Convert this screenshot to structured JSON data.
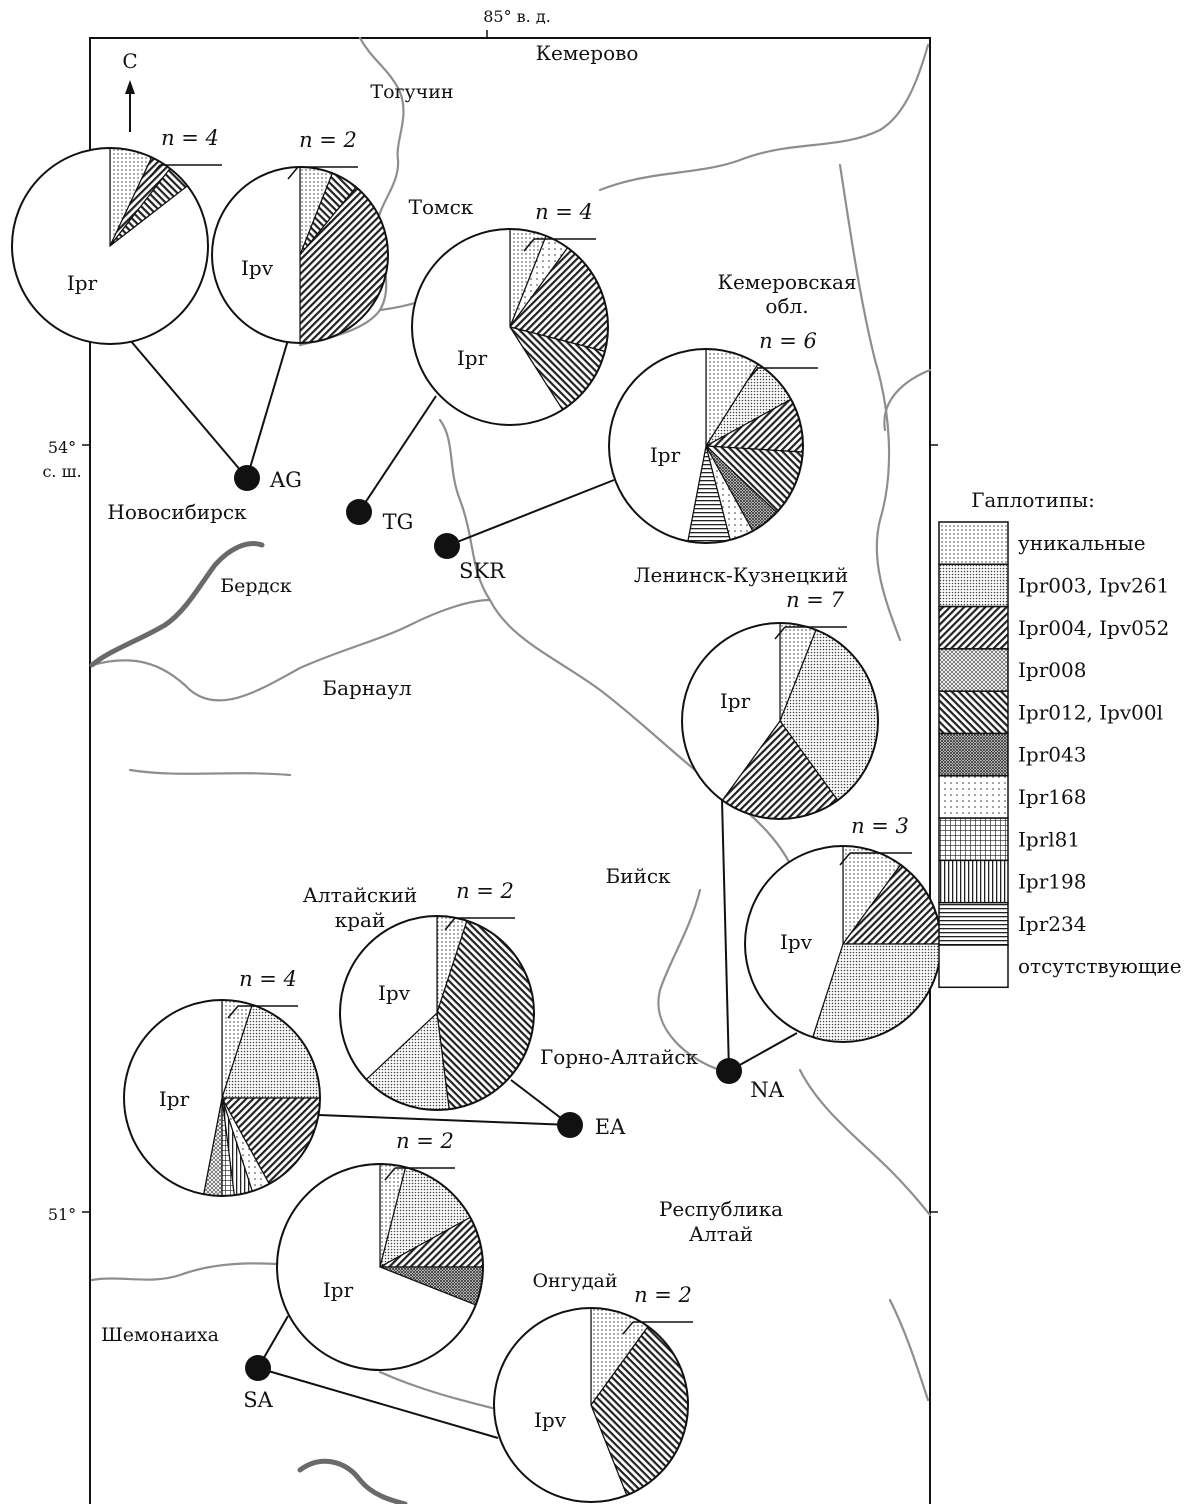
{
  "axes": {
    "longitude_label": "85° в. д.",
    "lat54_value": "54°",
    "lat54_suffix": "с. ш.",
    "lat51_value": "51°"
  },
  "north_arrow": "С",
  "place_labels": {
    "kemerovo": "Кемерово",
    "toguchin": "Тогучин",
    "tomsk": "Томск",
    "kemerovo_obl_1": "Кемеровская",
    "kemerovo_obl_2": "обл.",
    "novosibirsk": "Новосибирск",
    "berdsk": "Бердск",
    "leninsk": "Ленинск-Кузнецкий",
    "barnaul": "Барнаул",
    "biysk": "Бийск",
    "altai_krai_1": "Алтайский",
    "altai_krai_2": "край",
    "gorno_altaysk": "Горно-Алтайск",
    "rep_altai_1": "Республика",
    "rep_altai_2": "Алтай",
    "shemonaikha": "Шемонаиха",
    "ongudai": "Онгудай"
  },
  "sites": [
    {
      "code": "AG"
    },
    {
      "code": "TG"
    },
    {
      "code": "SKR"
    },
    {
      "code": "NA"
    },
    {
      "code": "EA"
    },
    {
      "code": "SA"
    }
  ],
  "legend": {
    "title": "Гаплотипы:",
    "items": [
      {
        "label": "уникальные",
        "pattern": "dots-fine"
      },
      {
        "label": "Ipr003, Ipv261",
        "pattern": "dots-dense"
      },
      {
        "label": "Ipr004, Ipv052",
        "pattern": "hatch-back-dark"
      },
      {
        "label": "Ipr008",
        "pattern": "crosshatch-fine"
      },
      {
        "label": "Ipr012, Ipv00l",
        "pattern": "hatch-fwd-dark"
      },
      {
        "label": "Ipr043",
        "pattern": "crosshatch-dense"
      },
      {
        "label": "Ipr168",
        "pattern": "dots-sparse"
      },
      {
        "label": "Iprl81",
        "pattern": "grid"
      },
      {
        "label": "Ipr198",
        "pattern": "vertical"
      },
      {
        "label": "Ipr234",
        "pattern": "horizontal"
      },
      {
        "label": "отсутствующие",
        "pattern": "white"
      }
    ]
  },
  "chart_data": [
    {
      "type": "pie",
      "site": "AG",
      "species_label": "Ipr",
      "n_label": "n = 4",
      "slices": [
        {
          "haplotype": "уникальные",
          "value": 0.07
        },
        {
          "haplotype": "Ipr004, Ipv052",
          "value": 0.035
        },
        {
          "haplotype": "Ipr012, Ipv00l",
          "value": 0.04
        },
        {
          "haplotype": "отсутствующие",
          "value": 0.855
        }
      ]
    },
    {
      "type": "pie",
      "site": "AG",
      "species_label": "Ipv",
      "n_label": "n = 2",
      "slices": [
        {
          "haplotype": "уникальные",
          "value": 0.06
        },
        {
          "haplotype": "Ipr012, Ipv00l",
          "value": 0.05
        },
        {
          "haplotype": "Ipr004, Ipv052",
          "value": 0.39
        },
        {
          "haplotype": "отсутствующие",
          "value": 0.5
        }
      ]
    },
    {
      "type": "pie",
      "site": "TG",
      "species_label": "Ipr",
      "n_label": "n = 4",
      "slices": [
        {
          "haplotype": "уникальные",
          "value": 0.06
        },
        {
          "haplotype": "Ipr168",
          "value": 0.04
        },
        {
          "haplotype": "Ipr004, Ipv052",
          "value": 0.19
        },
        {
          "haplotype": "Ipr012, Ipv00l",
          "value": 0.12
        },
        {
          "haplotype": "отсутствующие",
          "value": 0.59
        }
      ]
    },
    {
      "type": "pie",
      "site": "SKR",
      "species_label": "Ipr",
      "n_label": "n = 6",
      "slices": [
        {
          "haplotype": "уникальные",
          "value": 0.09
        },
        {
          "haplotype": "Ipr003, Ipv261",
          "value": 0.08
        },
        {
          "haplotype": "Ipr004, Ipv052",
          "value": 0.09
        },
        {
          "haplotype": "Ipr012, Ipv00l",
          "value": 0.11
        },
        {
          "haplotype": "Ipr043",
          "value": 0.05
        },
        {
          "haplotype": "Ipr168",
          "value": 0.04
        },
        {
          "haplotype": "Ipr234",
          "value": 0.07
        },
        {
          "haplotype": "отсутствующие",
          "value": 0.47
        }
      ]
    },
    {
      "type": "pie",
      "site": "NA",
      "species_label": "Ipr",
      "n_label": "n = 7",
      "slices": [
        {
          "haplotype": "уникальные",
          "value": 0.06
        },
        {
          "haplotype": "Ipr003, Ipv261",
          "value": 0.34
        },
        {
          "haplotype": "Ipr004, Ipv052",
          "value": 0.2
        },
        {
          "haplotype": "отсутствующие",
          "value": 0.4
        }
      ]
    },
    {
      "type": "pie",
      "site": "NA",
      "species_label": "Ipv",
      "n_label": "n = 3",
      "slices": [
        {
          "haplotype": "уникальные",
          "value": 0.1
        },
        {
          "haplotype": "Ipr004, Ipv052",
          "value": 0.15
        },
        {
          "haplotype": "Ipr003, Ipv261",
          "value": 0.3
        },
        {
          "haplotype": "отсутствующие",
          "value": 0.45
        }
      ]
    },
    {
      "type": "pie",
      "site": "EA",
      "species_label": "Ipv",
      "n_label": "n = 2",
      "slices": [
        {
          "haplotype": "уникальные",
          "value": 0.05
        },
        {
          "haplotype": "Ipr012, Ipv00l",
          "value": 0.43
        },
        {
          "haplotype": "Ipr003, Ipv261",
          "value": 0.15
        },
        {
          "haplotype": "отсутствующие",
          "value": 0.37
        }
      ]
    },
    {
      "type": "pie",
      "site": "EA",
      "species_label": "Ipr",
      "n_label": "n = 4",
      "slices": [
        {
          "haplotype": "уникальные",
          "value": 0.05
        },
        {
          "haplotype": "Ipr003, Ipv261",
          "value": 0.2
        },
        {
          "haplotype": "Ipr004, Ipv052",
          "value": 0.17
        },
        {
          "haplotype": "Ipr168",
          "value": 0.03
        },
        {
          "haplotype": "Ipr198",
          "value": 0.03
        },
        {
          "haplotype": "Iprl81",
          "value": 0.02
        },
        {
          "haplotype": "Ipr008",
          "value": 0.03
        },
        {
          "haplotype": "отсутствующие",
          "value": 0.47
        }
      ]
    },
    {
      "type": "pie",
      "site": "SA",
      "species_label": "Ipr",
      "n_label": "n = 2",
      "slices": [
        {
          "haplotype": "уникальные",
          "value": 0.04
        },
        {
          "haplotype": "Ipr003, Ipv261",
          "value": 0.13
        },
        {
          "haplotype": "Ipr004, Ipv052",
          "value": 0.08
        },
        {
          "haplotype": "Ipr043",
          "value": 0.06
        },
        {
          "haplotype": "отсутствующие",
          "value": 0.69
        }
      ]
    },
    {
      "type": "pie",
      "site": "SA",
      "species_label": "Ipv",
      "n_label": "n = 2",
      "slices": [
        {
          "haplotype": "уникальные",
          "value": 0.1
        },
        {
          "haplotype": "Ipr012, Ipv00l",
          "value": 0.34
        },
        {
          "haplotype": "отсутствующие",
          "value": 0.56
        }
      ]
    }
  ]
}
